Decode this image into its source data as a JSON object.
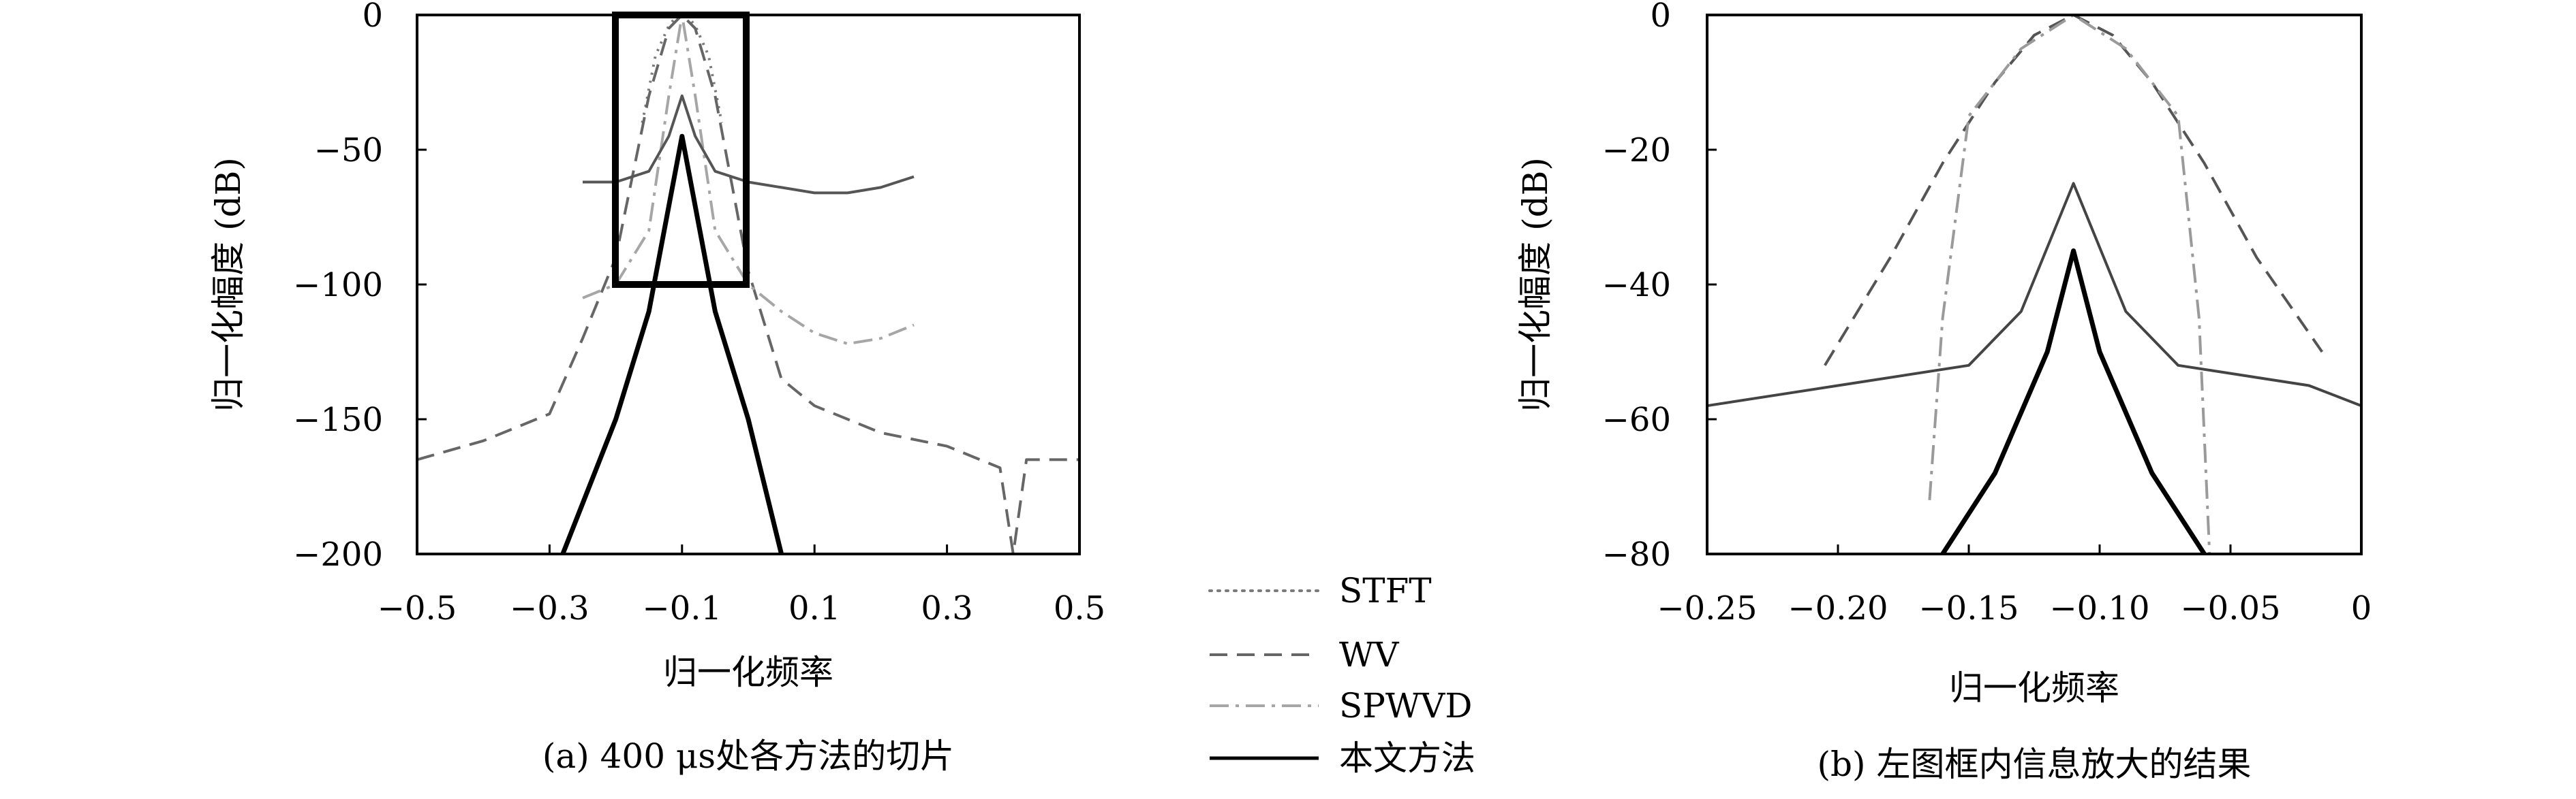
{
  "chart_data": [
    {
      "type": "line",
      "caption": "(a) 400 μs处各方法的切片",
      "xlabel": "归一化频率",
      "ylabel": "归一化幅度 (dB)",
      "xlim": [
        -0.5,
        0.5
      ],
      "ylim": [
        -200,
        0
      ],
      "xticks": [
        -0.5,
        -0.3,
        -0.1,
        0.1,
        0.3,
        0.5
      ],
      "xtick_labels": [
        "−0.5",
        "−0.3",
        "−0.1",
        "0.1",
        "0.3",
        "0.5"
      ],
      "yticks": [
        0,
        -50,
        -100,
        -150,
        -200
      ],
      "ytick_labels": [
        "0",
        "−50",
        "−100",
        "−150",
        "−200"
      ],
      "grid": false,
      "zoom_box": {
        "x": [
          -0.2,
          0.0
        ],
        "y": [
          -100,
          0
        ]
      },
      "series": [
        {
          "name": "STFT",
          "color": "#7a7a7a",
          "style": "dotted",
          "x": [
            -0.16,
            -0.14,
            -0.12,
            -0.11,
            -0.1,
            -0.09,
            -0.08,
            -0.06,
            -0.04
          ],
          "y": [
            -40,
            -15,
            -4,
            -1,
            0,
            -1,
            -4,
            -15,
            -40
          ]
        },
        {
          "name": "WV",
          "color": "#666666",
          "style": "dashed",
          "x": [
            -0.5,
            -0.4,
            -0.3,
            -0.25,
            -0.2,
            -0.15,
            -0.12,
            -0.1,
            -0.08,
            -0.05,
            0.0,
            0.05,
            0.1,
            0.2,
            0.3,
            0.38,
            0.4,
            0.42,
            0.5
          ],
          "y": [
            -165,
            -158,
            -148,
            -120,
            -90,
            -30,
            -5,
            0,
            -5,
            -30,
            -95,
            -135,
            -145,
            -155,
            -160,
            -168,
            -200,
            -165,
            -165
          ]
        },
        {
          "name": "SPWVD",
          "color": "#a6a6a6",
          "style": "dashdot",
          "x": [
            -0.25,
            -0.2,
            -0.15,
            -0.12,
            -0.1,
            -0.08,
            -0.05,
            0.0,
            0.05,
            0.1,
            0.15,
            0.2,
            0.25
          ],
          "y": [
            -105,
            -100,
            -80,
            -30,
            0,
            -30,
            -80,
            -100,
            -110,
            -118,
            -122,
            -120,
            -115
          ]
        },
        {
          "name": "本文方法",
          "color": "#000000",
          "style": "solid",
          "x": [
            -0.28,
            -0.2,
            -0.15,
            -0.1,
            -0.05,
            0.0,
            0.05
          ],
          "y": [
            -200,
            -150,
            -110,
            -45,
            -110,
            -150,
            -200
          ]
        },
        {
          "name": "",
          "color": "#555555",
          "style": "solid",
          "x": [
            -0.25,
            -0.2,
            -0.15,
            -0.12,
            -0.1,
            -0.08,
            -0.05,
            0.0,
            0.05,
            0.1,
            0.15,
            0.2,
            0.25
          ],
          "y": [
            -62,
            -62,
            -58,
            -45,
            -30,
            -45,
            -58,
            -62,
            -64,
            -66,
            -66,
            -64,
            -60
          ]
        }
      ]
    },
    {
      "type": "line",
      "caption": "(b) 左图框内信息放大的结果",
      "xlabel": "归一化频率",
      "ylabel": "归一化幅度 (dB)",
      "xlim": [
        -0.25,
        0
      ],
      "ylim": [
        -80,
        0
      ],
      "xticks": [
        -0.25,
        -0.2,
        -0.15,
        -0.1,
        -0.05,
        0
      ],
      "xtick_labels": [
        "−0.25",
        "−0.20",
        "−0.15",
        "−0.10",
        "−0.05",
        "0"
      ],
      "yticks": [
        0,
        -20,
        -40,
        -60,
        -80
      ],
      "ytick_labels": [
        "0",
        "−20",
        "−40",
        "−60",
        "−80"
      ],
      "grid": false,
      "series": [
        {
          "name": "WV",
          "color": "#555555",
          "style": "dashed",
          "x": [
            -0.205,
            -0.18,
            -0.16,
            -0.14,
            -0.125,
            -0.11,
            -0.095,
            -0.08,
            -0.06,
            -0.04,
            -0.015
          ],
          "y": [
            -52,
            -36,
            -22,
            -10,
            -3,
            0,
            -3,
            -10,
            -22,
            -36,
            -50
          ]
        },
        {
          "name": "SPWVD",
          "color": "#9a9a9a",
          "style": "dashdot",
          "x": [
            -0.165,
            -0.16,
            -0.15,
            -0.13,
            -0.11,
            -0.09,
            -0.07,
            -0.062,
            -0.058
          ],
          "y": [
            -72,
            -45,
            -15,
            -5,
            0,
            -5,
            -15,
            -45,
            -80
          ]
        },
        {
          "name": "",
          "color": "#444444",
          "style": "solid",
          "x": [
            -0.25,
            -0.2,
            -0.15,
            -0.13,
            -0.11,
            -0.09,
            -0.07,
            -0.02,
            0.0
          ],
          "y": [
            -58,
            -55,
            -52,
            -44,
            -25,
            -44,
            -52,
            -55,
            -58
          ]
        },
        {
          "name": "本文方法",
          "color": "#000000",
          "style": "solid",
          "x": [
            -0.16,
            -0.14,
            -0.12,
            -0.11,
            -0.1,
            -0.08,
            -0.06
          ],
          "y": [
            -80,
            -68,
            -50,
            -35,
            -50,
            -68,
            -80
          ]
        }
      ]
    }
  ],
  "legend": {
    "placement": "center-bottom",
    "entries": [
      {
        "label": "STFT",
        "style": "dotted",
        "color": "#7a7a7a"
      },
      {
        "label": "WV",
        "style": "dashed",
        "color": "#666666"
      },
      {
        "label": "SPWVD",
        "style": "dashdot",
        "color": "#a6a6a6"
      },
      {
        "label": "本文方法",
        "style": "solid",
        "color": "#000000"
      }
    ]
  }
}
